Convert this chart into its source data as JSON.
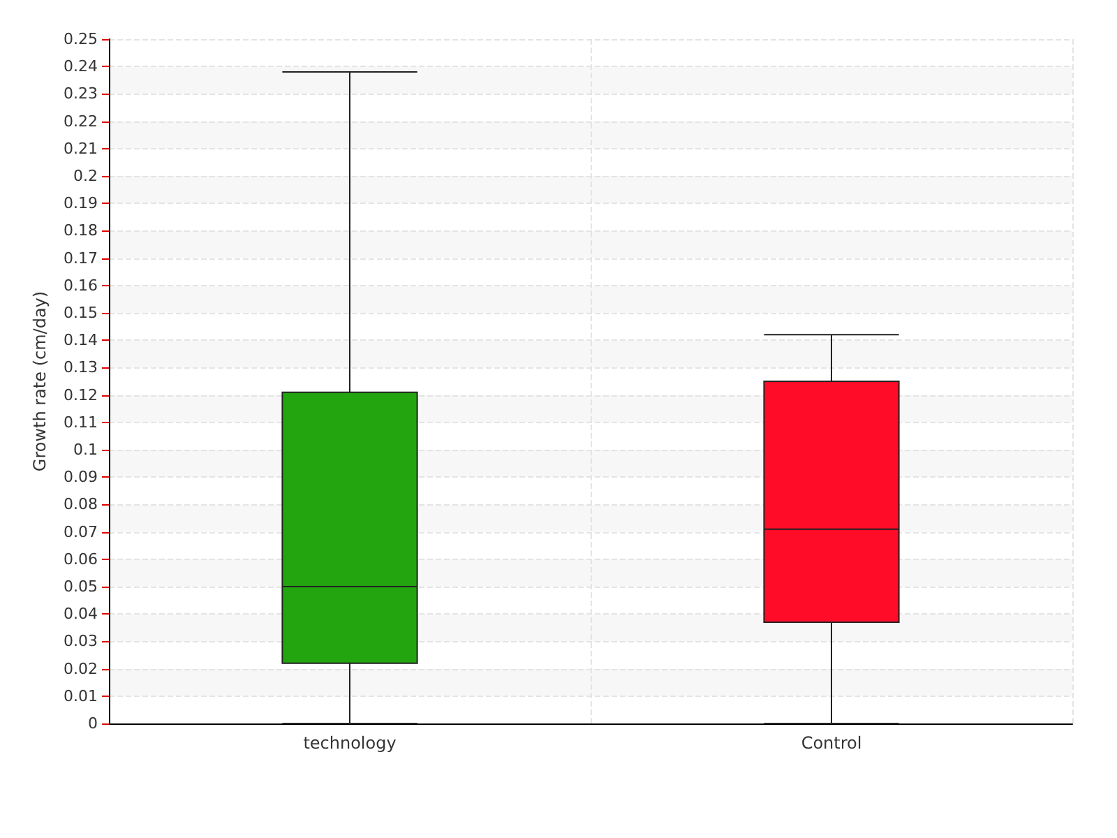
{
  "chart_data": {
    "type": "box",
    "ylabel": "Growth rate (cm/day)",
    "categories": [
      "technology",
      "Control"
    ],
    "boxes": [
      {
        "low": 0,
        "q1": 0.022,
        "median": 0.05,
        "q3": 0.121,
        "high": 0.238
      },
      {
        "low": 0,
        "q1": 0.037,
        "median": 0.071,
        "q3": 0.125,
        "high": 0.142
      }
    ],
    "colors": [
      "#22a50f",
      "#ff0d28"
    ],
    "ylim": [
      0,
      0.25
    ],
    "yticks": [
      0,
      0.01,
      0.02,
      0.03,
      0.04,
      0.05,
      0.06,
      0.07,
      0.08,
      0.09,
      0.1,
      0.11,
      0.12,
      0.13,
      0.14,
      0.15,
      0.16,
      0.17,
      0.18,
      0.19,
      0.2,
      0.21,
      0.22,
      0.23,
      0.24,
      0.25
    ],
    "grid": true
  }
}
